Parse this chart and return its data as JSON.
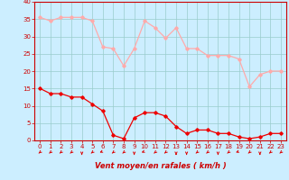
{
  "x": [
    0,
    1,
    2,
    3,
    4,
    5,
    6,
    7,
    8,
    9,
    10,
    11,
    12,
    13,
    14,
    15,
    16,
    17,
    18,
    19,
    20,
    21,
    22,
    23
  ],
  "wind_avg": [
    15,
    13.5,
    13.5,
    12.5,
    12.5,
    10.5,
    8.5,
    1.5,
    0.5,
    6.5,
    8,
    8,
    7,
    4,
    2,
    3,
    3,
    2,
    2,
    1,
    0.5,
    1,
    2,
    2
  ],
  "wind_gust": [
    35.5,
    34.5,
    35.5,
    35.5,
    35.5,
    34.5,
    27,
    26.5,
    21.5,
    26.5,
    34.5,
    32.5,
    29.5,
    32.5,
    26.5,
    26.5,
    24.5,
    24.5,
    24.5,
    23.5,
    15.5,
    19,
    20,
    20
  ],
  "xlim": [
    -0.5,
    23.5
  ],
  "ylim": [
    0,
    40
  ],
  "yticks": [
    0,
    5,
    10,
    15,
    20,
    25,
    30,
    35,
    40
  ],
  "xticks": [
    0,
    1,
    2,
    3,
    4,
    5,
    6,
    7,
    8,
    9,
    10,
    11,
    12,
    13,
    14,
    15,
    16,
    17,
    18,
    19,
    20,
    21,
    22,
    23
  ],
  "xlabel": "Vent moyen/en rafales ( km/h )",
  "bg_color": "#cceeff",
  "grid_color": "#99cccc",
  "line_avg_color": "#ee0000",
  "line_gust_color": "#ffaaaa",
  "tick_color": "#cc0000",
  "xlabel_color": "#cc0000",
  "spine_color": "#cc0000",
  "arrow_color": "#dd0000"
}
